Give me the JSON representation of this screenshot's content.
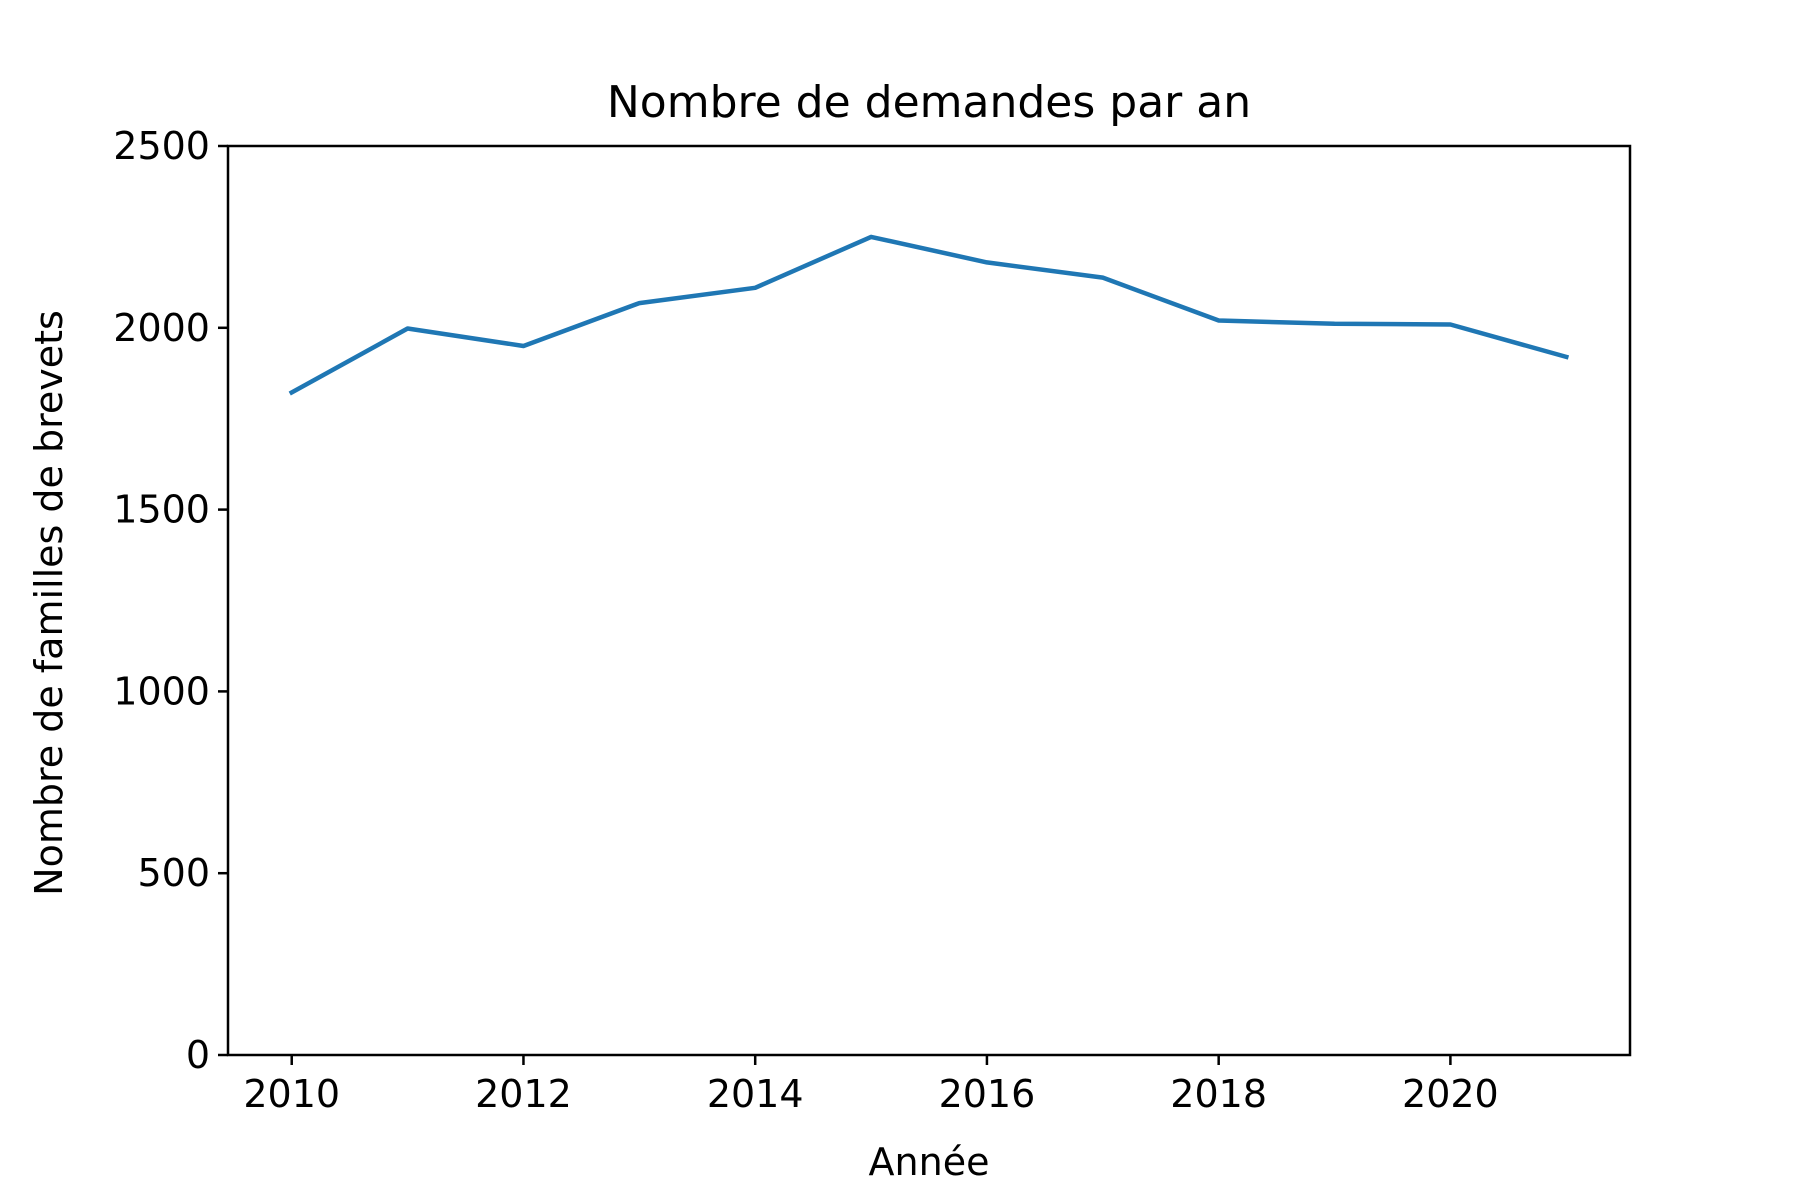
{
  "chart_data": {
    "type": "line",
    "title": "Nombre de demandes par an",
    "xlabel": "Année",
    "ylabel": "Nombre de familles de brevets",
    "xlim": [
      2009.45,
      2021.55
    ],
    "ylim": [
      0,
      2500
    ],
    "x_ticks": [
      "2010",
      "2012",
      "2014",
      "2016",
      "2018",
      "2020"
    ],
    "y_ticks": [
      "0",
      "500",
      "1000",
      "1500",
      "2000",
      "2500"
    ],
    "grid": false,
    "legend": "none",
    "series": [
      {
        "color": "#1f77b4",
        "x": [
          2010,
          2011,
          2012,
          2013,
          2014,
          2015,
          2016,
          2017,
          2018,
          2019,
          2020,
          2021
        ],
        "y": [
          1822,
          1998,
          1950,
          2068,
          2110,
          2250,
          2180,
          2138,
          2020,
          2011,
          2009,
          1920
        ]
      }
    ]
  }
}
